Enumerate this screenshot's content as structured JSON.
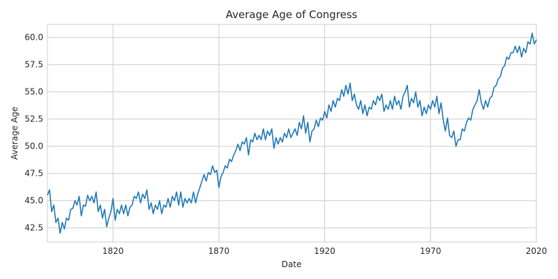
{
  "chart_data": {
    "type": "line",
    "title": "Average Age of Congress",
    "xlabel": "Date",
    "ylabel": "Average Age",
    "xlim": [
      1789,
      2020
    ],
    "ylim": [
      41.2,
      61.2
    ],
    "x_ticks": [
      1820,
      1870,
      1920,
      1970,
      2020
    ],
    "x_tick_labels": [
      "1820",
      "1870",
      "1920",
      "1970",
      "2020"
    ],
    "y_ticks": [
      42.5,
      45.0,
      47.5,
      50.0,
      52.5,
      55.0,
      57.5,
      60.0
    ],
    "y_tick_labels": [
      "42.5",
      "45.0",
      "47.5",
      "50.0",
      "52.5",
      "55.0",
      "57.5",
      "60.0"
    ],
    "grid": true,
    "series_color": "#1f77b4",
    "series": [
      {
        "x": [
          1789,
          1790,
          1791,
          1792,
          1793,
          1794,
          1795,
          1796,
          1797,
          1798,
          1799,
          1800,
          1801,
          1802,
          1803,
          1804,
          1805,
          1806,
          1807,
          1808,
          1809,
          1810,
          1811,
          1812,
          1813,
          1814,
          1815,
          1816,
          1817,
          1818,
          1819,
          1820,
          1821,
          1822,
          1823,
          1824,
          1825,
          1826,
          1827,
          1828,
          1829,
          1830,
          1831,
          1832,
          1833,
          1834,
          1835,
          1836,
          1837,
          1838,
          1839,
          1840,
          1841,
          1842,
          1843,
          1844,
          1845,
          1846,
          1847,
          1848,
          1849,
          1850,
          1851,
          1852,
          1853,
          1854,
          1855,
          1856,
          1857,
          1858,
          1859,
          1860,
          1861,
          1862,
          1863,
          1864,
          1865,
          1866,
          1867,
          1868,
          1869,
          1870,
          1871,
          1872,
          1873,
          1874,
          1875,
          1876,
          1877,
          1878,
          1879,
          1880,
          1881,
          1882,
          1883,
          1884,
          1885,
          1886,
          1887,
          1888,
          1889,
          1890,
          1891,
          1892,
          1893,
          1894,
          1895,
          1896,
          1897,
          1898,
          1899,
          1900,
          1901,
          1902,
          1903,
          1904,
          1905,
          1906,
          1907,
          1908,
          1909,
          1910,
          1911,
          1912,
          1913,
          1914,
          1915,
          1916,
          1917,
          1918,
          1919,
          1920,
          1921,
          1922,
          1923,
          1924,
          1925,
          1926,
          1927,
          1928,
          1929,
          1930,
          1931,
          1932,
          1933,
          1934,
          1935,
          1936,
          1937,
          1938,
          1939,
          1940,
          1941,
          1942,
          1943,
          1944,
          1945,
          1946,
          1947,
          1948,
          1949,
          1950,
          1951,
          1952,
          1953,
          1954,
          1955,
          1956,
          1957,
          1958,
          1959,
          1960,
          1961,
          1962,
          1963,
          1964,
          1965,
          1966,
          1967,
          1968,
          1969,
          1970,
          1971,
          1972,
          1973,
          1974,
          1975,
          1976,
          1977,
          1978,
          1979,
          1980,
          1981,
          1982,
          1983,
          1984,
          1985,
          1986,
          1987,
          1988,
          1989,
          1990,
          1991,
          1992,
          1993,
          1994,
          1995,
          1996,
          1997,
          1998,
          1999,
          2000,
          2001,
          2002,
          2003,
          2004,
          2005,
          2006,
          2007,
          2008,
          2009,
          2010,
          2011,
          2012,
          2013,
          2014,
          2015,
          2016,
          2017,
          2018,
          2019,
          2020
        ],
        "y": [
          45.5,
          46.0,
          44.0,
          44.6,
          43.0,
          43.4,
          42.0,
          43.0,
          42.4,
          43.4,
          43.2,
          44.2,
          44.3,
          45.0,
          44.6,
          45.4,
          43.6,
          44.6,
          44.5,
          45.5,
          45.0,
          45.4,
          44.8,
          45.8,
          44.0,
          44.6,
          43.4,
          44.2,
          42.6,
          43.4,
          44.0,
          45.2,
          43.2,
          44.2,
          43.8,
          44.6,
          43.8,
          44.6,
          43.6,
          44.4,
          44.6,
          45.4,
          45.2,
          45.8,
          44.8,
          45.6,
          45.2,
          46.0,
          44.2,
          44.8,
          43.8,
          44.6,
          44.2,
          45.0,
          43.8,
          44.6,
          44.4,
          45.2,
          44.4,
          45.4,
          45.0,
          45.8,
          44.6,
          45.8,
          44.4,
          45.2,
          44.8,
          45.2,
          44.8,
          45.8,
          44.8,
          45.6,
          46.2,
          46.8,
          47.4,
          46.8,
          47.6,
          47.4,
          48.2,
          47.6,
          47.8,
          46.2,
          47.2,
          47.6,
          48.2,
          48.0,
          48.8,
          48.6,
          49.2,
          49.6,
          50.2,
          49.6,
          50.4,
          50.2,
          50.8,
          49.2,
          50.6,
          50.4,
          51.2,
          50.6,
          51.0,
          50.6,
          51.6,
          50.6,
          51.4,
          51.0,
          51.6,
          49.8,
          50.8,
          50.2,
          50.8,
          50.4,
          51.2,
          50.8,
          51.6,
          50.8,
          51.2,
          51.6,
          51.0,
          52.2,
          51.6,
          52.8,
          51.2,
          52.2,
          50.4,
          51.4,
          51.6,
          52.4,
          51.8,
          52.6,
          52.4,
          53.2,
          52.6,
          53.8,
          53.2,
          54.2,
          53.6,
          54.4,
          54.2,
          55.2,
          54.6,
          55.6,
          54.8,
          55.8,
          54.2,
          54.8,
          53.8,
          53.4,
          54.2,
          53.0,
          53.8,
          52.8,
          53.6,
          53.4,
          54.2,
          53.8,
          54.6,
          54.2,
          54.8,
          53.2,
          53.8,
          53.4,
          54.2,
          53.4,
          54.6,
          53.8,
          54.2,
          53.4,
          54.6,
          55.0,
          55.6,
          53.6,
          54.4,
          54.0,
          55.0,
          53.6,
          54.2,
          52.8,
          53.6,
          53.0,
          53.8,
          53.4,
          54.2,
          53.6,
          54.6,
          53.0,
          54.0,
          52.4,
          51.4,
          52.6,
          51.0,
          50.8,
          51.4,
          50.0,
          50.6,
          50.6,
          51.6,
          51.4,
          52.2,
          52.6,
          52.4,
          53.4,
          53.8,
          54.2,
          55.2,
          54.0,
          53.4,
          54.2,
          53.6,
          54.4,
          54.6,
          55.4,
          55.6,
          56.2,
          56.4,
          57.2,
          57.4,
          58.2,
          58.0,
          58.6,
          58.6,
          59.2,
          58.6,
          59.2,
          58.2,
          59.0,
          58.6,
          59.6,
          59.4,
          60.4,
          59.4,
          59.8
        ]
      }
    ]
  }
}
